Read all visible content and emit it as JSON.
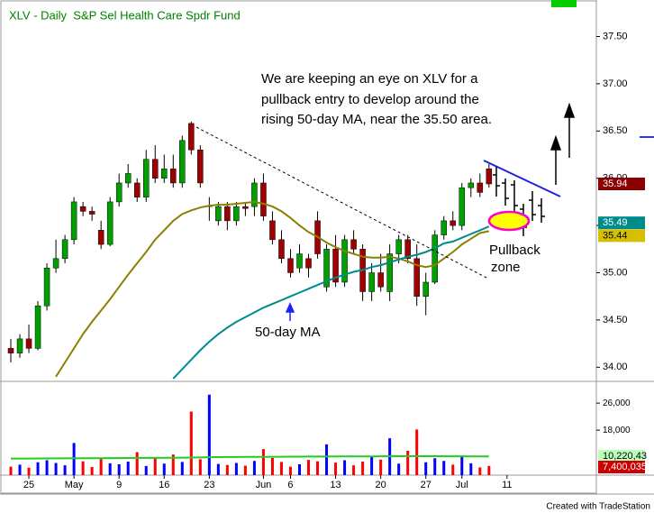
{
  "chart_data": {
    "type": "candlestick",
    "title": "XLV - Daily  S&P Sel Health Care Spdr Fund",
    "annotations": [
      "We are keeping an eye on XLV for a",
      "pullback entry to develop around the",
      "rising 50-day MA, near the 35.50 area."
    ],
    "ma_label": "50-day MA",
    "zone_label": [
      "Pullback",
      "zone"
    ],
    "footer": "Created with TradeStation",
    "up_color": "#00a000",
    "down_color": "#a00000",
    "xlim": [
      -0.7,
      64.9
    ],
    "xticks": [
      {
        "value": 2,
        "label": "25"
      },
      {
        "value": 7,
        "label": "May"
      },
      {
        "value": 12,
        "label": "9"
      },
      {
        "value": 17,
        "label": "16"
      },
      {
        "value": 22,
        "label": "23"
      },
      {
        "value": 28,
        "label": "Jun"
      },
      {
        "value": 31,
        "label": "6"
      },
      {
        "value": 36,
        "label": "13"
      },
      {
        "value": 41,
        "label": "20"
      },
      {
        "value": 46,
        "label": "27"
      },
      {
        "value": 50,
        "label": "Jul"
      },
      {
        "value": 55,
        "label": "11"
      }
    ],
    "ylim": [
      33.86,
      37.81
    ],
    "yticks": [
      {
        "value": 34,
        "label": "34.00"
      },
      {
        "value": 34.5,
        "label": "34.50"
      },
      {
        "value": 35,
        "label": "35.00"
      },
      {
        "value": 35.5,
        "label": "35.50"
      },
      {
        "value": 36,
        "label": "36.00"
      },
      {
        "value": 36.5,
        "label": "36.50"
      },
      {
        "value": 37,
        "label": "37.00"
      },
      {
        "value": 37.5,
        "label": "37.50"
      }
    ],
    "open": [
      34.2,
      34.15,
      34.3,
      34.2,
      34.65,
      35.05,
      35.15,
      35.35,
      35.7,
      35.65,
      35.45,
      35.3,
      35.75,
      35.95,
      35.95,
      35.8,
      36.2,
      36.0,
      36.1,
      35.95,
      36.58,
      36.3,
      35.7,
      35.55,
      35.7,
      35.55,
      35.7,
      35.7,
      35.95,
      35.55,
      35.35,
      35.15,
      35.05,
      35.15,
      35.55,
      34.85,
      35.25,
      34.9,
      35.35,
      35.25,
      34.8,
      35.0,
      34.8,
      35.2,
      35.35,
      35.15,
      34.75,
      34.9,
      35.4,
      35.55,
      35.5,
      35.9,
      35.95,
      36.1
    ],
    "high": [
      34.3,
      34.35,
      34.45,
      34.7,
      35.1,
      35.35,
      35.4,
      35.8,
      35.75,
      35.7,
      35.55,
      35.8,
      36.05,
      36.15,
      36.0,
      36.3,
      36.35,
      36.25,
      36.25,
      36.45,
      36.6,
      36.35,
      35.8,
      35.75,
      35.75,
      35.75,
      35.75,
      36.0,
      36.05,
      35.65,
      35.45,
      35.25,
      35.3,
      35.2,
      35.65,
      35.3,
      35.4,
      35.4,
      35.45,
      35.3,
      35.1,
      35.2,
      35.3,
      35.4,
      35.4,
      35.3,
      35.0,
      35.45,
      35.6,
      35.65,
      35.95,
      36.0,
      36.05,
      36.15
    ],
    "low": [
      34.05,
      34.1,
      34.15,
      34.18,
      34.6,
      35.0,
      35.1,
      35.3,
      35.6,
      35.55,
      35.25,
      35.28,
      35.7,
      35.9,
      35.75,
      35.75,
      35.95,
      35.95,
      35.9,
      35.9,
      36.25,
      35.9,
      35.55,
      35.5,
      35.45,
      35.5,
      35.6,
      35.6,
      35.55,
      35.3,
      35.1,
      34.95,
      35.0,
      34.95,
      35.15,
      34.8,
      34.85,
      34.85,
      35.2,
      34.7,
      34.7,
      34.8,
      34.7,
      35.1,
      35.1,
      34.65,
      34.55,
      34.88,
      35.35,
      35.45,
      35.45,
      35.8,
      35.8,
      35.9
    ],
    "close": [
      34.15,
      34.3,
      34.2,
      34.65,
      35.05,
      35.15,
      35.35,
      35.75,
      35.65,
      35.62,
      35.3,
      35.75,
      35.95,
      36.05,
      35.8,
      36.2,
      36.0,
      36.1,
      35.95,
      36.4,
      36.3,
      35.95,
      35.71,
      35.7,
      35.55,
      35.7,
      35.68,
      35.95,
      35.6,
      35.35,
      35.15,
      35.0,
      35.2,
      35.05,
      35.2,
      35.25,
      34.9,
      35.35,
      35.25,
      34.8,
      35.0,
      34.85,
      35.2,
      35.35,
      35.15,
      34.75,
      34.9,
      35.4,
      35.55,
      35.5,
      35.9,
      35.95,
      35.85,
      35.94
    ],
    "series": [
      {
        "color": "#8b8000",
        "values": [
          null,
          null,
          null,
          null,
          null,
          33.9,
          34.05,
          34.2,
          34.35,
          34.48,
          34.6,
          34.72,
          34.85,
          34.98,
          35.1,
          35.22,
          35.35,
          35.45,
          35.55,
          35.62,
          35.66,
          35.69,
          35.71,
          35.72,
          35.72,
          35.73,
          35.74,
          35.75,
          35.73,
          35.7,
          35.65,
          35.58,
          35.5,
          35.43,
          35.38,
          35.32,
          35.27,
          35.23,
          35.2,
          35.17,
          35.16,
          35.16,
          35.17,
          35.15,
          35.12,
          35.08,
          35.06,
          35.08,
          35.15,
          35.22,
          35.3,
          35.36,
          35.42,
          35.44
        ]
      },
      {
        "color": "#008b8b",
        "values": [
          null,
          null,
          null,
          null,
          null,
          null,
          null,
          null,
          null,
          null,
          null,
          null,
          null,
          null,
          null,
          null,
          null,
          null,
          33.88,
          33.98,
          34.08,
          34.18,
          34.27,
          34.35,
          34.42,
          34.48,
          34.53,
          34.58,
          34.63,
          34.67,
          34.71,
          34.75,
          34.79,
          34.83,
          34.87,
          34.91,
          34.95,
          34.98,
          35.01,
          35.03,
          35.06,
          35.08,
          35.11,
          35.14,
          35.17,
          35.19,
          35.22,
          35.26,
          35.31,
          35.33,
          35.37,
          35.41,
          35.45,
          35.49
        ]
      }
    ],
    "y2lim": [
      4700,
      31900
    ],
    "y2ticks": [
      {
        "value": 18000,
        "label": "18,000"
      },
      {
        "value": 26000,
        "label": "26,000"
      }
    ],
    "volume": {
      "up_color": "#0000ff",
      "down_color": "#ff0000",
      "values": [
        7200,
        7800,
        6900,
        8500,
        9100,
        8300,
        7600,
        14200,
        8800,
        7100,
        9600,
        8200,
        7900,
        8700,
        11500,
        7400,
        9900,
        8100,
        10800,
        8600,
        23500,
        9400,
        28500,
        8000,
        7700,
        8300,
        7500,
        8900,
        12400,
        9800,
        8600,
        7200,
        7900,
        9200,
        8800,
        13800,
        8400,
        9100,
        7600,
        8700,
        10200,
        9300,
        15600,
        8100,
        11900,
        18200,
        8500,
        9700,
        8900,
        7800,
        10500,
        8200,
        7000,
        7400.035
      ],
      "last_label": "7,400,035"
    },
    "volume_avg": {
      "color": "#22cc22",
      "values": [
        9600,
        9610,
        9620,
        9630,
        9640,
        9650,
        9660,
        9680,
        9700,
        9710,
        9720,
        9730,
        9740,
        9760,
        9780,
        9790,
        9800,
        9820,
        9840,
        9860,
        9900,
        9930,
        10000,
        10030,
        10050,
        10070,
        10080,
        10100,
        10120,
        10140,
        10150,
        10160,
        10170,
        10180,
        10190,
        10200,
        10210,
        10220,
        10230,
        10240,
        10250,
        10260,
        10280,
        10290,
        10300,
        10310,
        10300,
        10290,
        10280,
        10270,
        10260,
        10250,
        10240,
        10220.43
      ],
      "last_label": "10,220,43"
    }
  }
}
